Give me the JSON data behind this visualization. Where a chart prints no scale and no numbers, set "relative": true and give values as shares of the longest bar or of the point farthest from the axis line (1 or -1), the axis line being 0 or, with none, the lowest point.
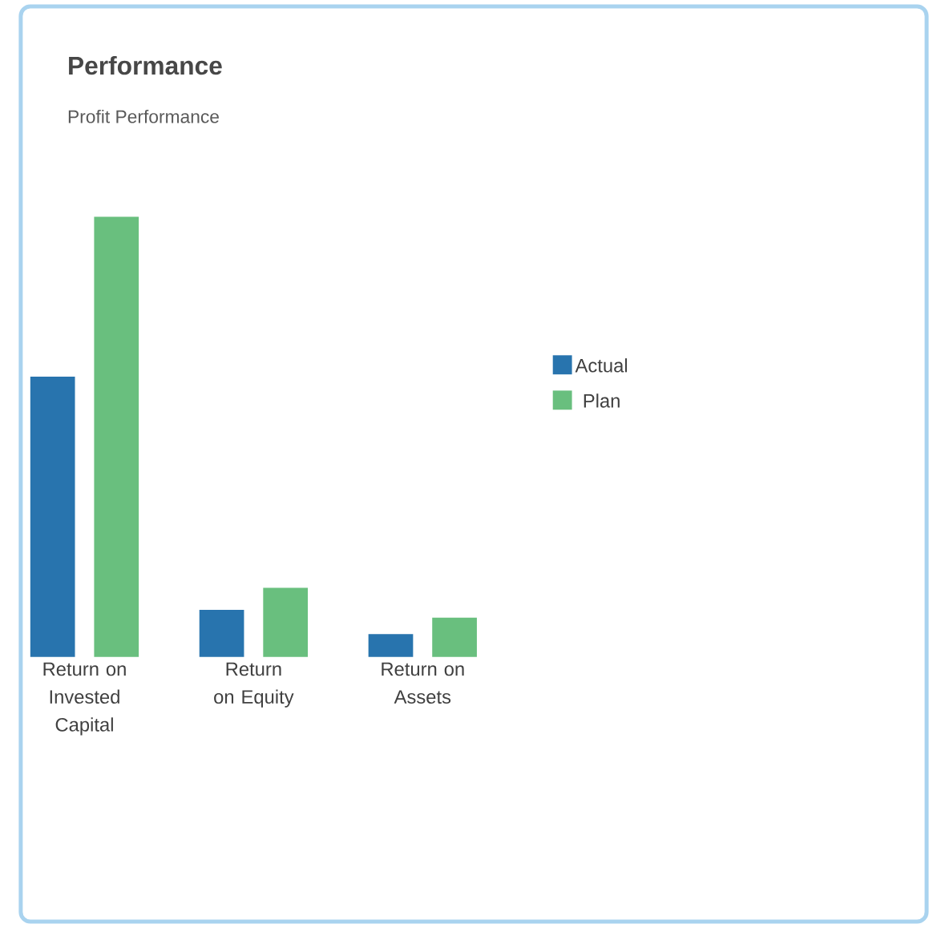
{
  "chart_data": {
    "type": "bar",
    "title": "Performance",
    "subtitle": "Profit Performance",
    "categories": [
      "Return on Invested Capital",
      "Return on Equity",
      "Return on Assets"
    ],
    "relative": true,
    "series": [
      {
        "name": "Actual",
        "color": "#2874ae",
        "values": [
          0.637,
          0.107,
          0.052
        ]
      },
      {
        "name": "Plan",
        "color": "#69bf7e",
        "values": [
          1,
          0.157,
          0.089
        ]
      }
    ],
    "legend": "right"
  }
}
